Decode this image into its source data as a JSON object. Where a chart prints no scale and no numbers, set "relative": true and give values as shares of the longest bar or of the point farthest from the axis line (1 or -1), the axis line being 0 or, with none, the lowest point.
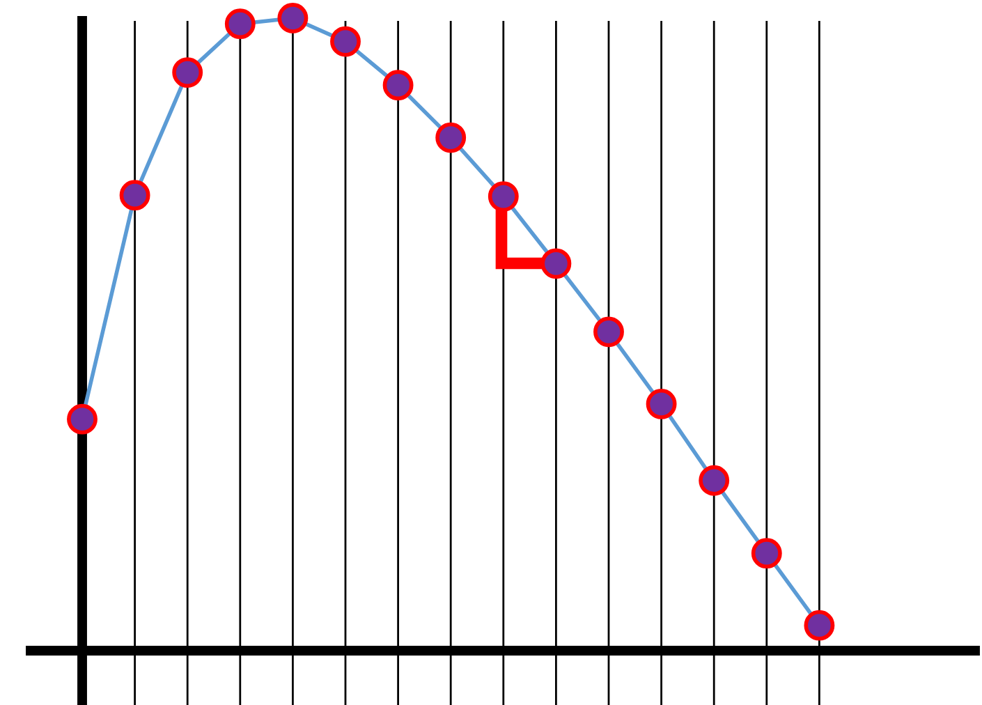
{
  "chart_data": {
    "type": "line",
    "relative": true,
    "categories": [
      null,
      null,
      null,
      null,
      null,
      null,
      null,
      null,
      null,
      null,
      null,
      null,
      null,
      null,
      null
    ],
    "series": [
      {
        "color": "#5b9bd5",
        "colors": [
          "#7030a0",
          "#7030a0",
          "#7030a0",
          "#7030a0",
          "#7030a0",
          "#7030a0",
          "#7030a0",
          "#7030a0",
          "#7030a0",
          "#7030a0",
          "#7030a0",
          "#7030a0",
          "#7030a0",
          "#7030a0",
          "#7030a0"
        ],
        "values": [
          0.366,
          0.72,
          0.914,
          0.991,
          1.0,
          0.963,
          0.894,
          0.811,
          0.718,
          0.612,
          0.504,
          0.39,
          0.269,
          0.154,
          0.04
        ]
      }
    ],
    "marker": "circle",
    "grid": "x",
    "tick_labels": false
  }
}
